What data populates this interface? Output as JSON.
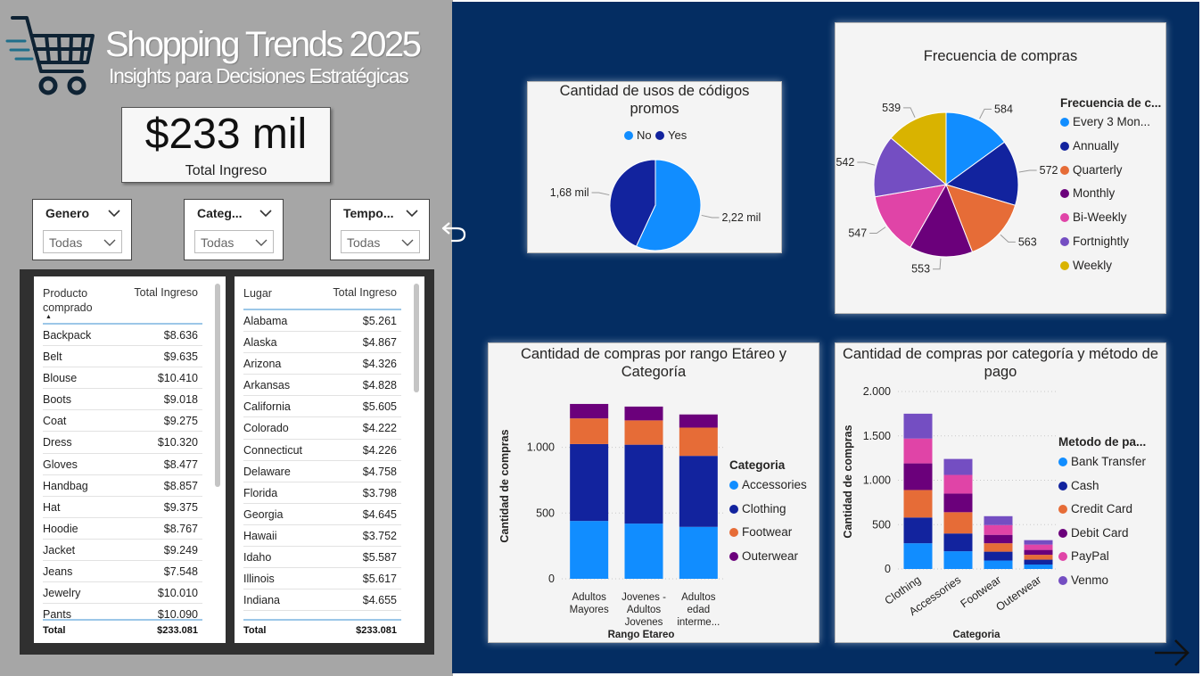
{
  "header": {
    "title": "Shopping Trends 2025",
    "subtitle": "Insights para Decisiones Estratégicas"
  },
  "kpi": {
    "value": "$233 mil",
    "label": "Total Ingreso"
  },
  "slicers": [
    {
      "title": "Genero",
      "value": "Todas"
    },
    {
      "title": "Categ...",
      "value": "Todas"
    },
    {
      "title": "Tempo...",
      "value": "Todas"
    }
  ],
  "product_table": {
    "header_left": "Producto comprado",
    "header_right": "Total Ingreso",
    "rows": [
      [
        "Backpack",
        "$8.636"
      ],
      [
        "Belt",
        "$9.635"
      ],
      [
        "Blouse",
        "$10.410"
      ],
      [
        "Boots",
        "$9.018"
      ],
      [
        "Coat",
        "$9.275"
      ],
      [
        "Dress",
        "$10.320"
      ],
      [
        "Gloves",
        "$8.477"
      ],
      [
        "Handbag",
        "$8.857"
      ],
      [
        "Hat",
        "$9.375"
      ],
      [
        "Hoodie",
        "$8.767"
      ],
      [
        "Jacket",
        "$9.249"
      ],
      [
        "Jeans",
        "$7.548"
      ],
      [
        "Jewelry",
        "$10.010"
      ],
      [
        "Pants",
        "$10.090"
      ]
    ],
    "total_label": "Total",
    "total_value": "$233.081"
  },
  "location_table": {
    "header_left": "Lugar",
    "header_right": "Total Ingreso",
    "rows": [
      [
        "Alabama",
        "$5.261"
      ],
      [
        "Alaska",
        "$4.867"
      ],
      [
        "Arizona",
        "$4.326"
      ],
      [
        "Arkansas",
        "$4.828"
      ],
      [
        "California",
        "$5.605"
      ],
      [
        "Colorado",
        "$4.222"
      ],
      [
        "Connecticut",
        "$4.226"
      ],
      [
        "Delaware",
        "$4.758"
      ],
      [
        "Florida",
        "$3.798"
      ],
      [
        "Georgia",
        "$4.645"
      ],
      [
        "Hawaii",
        "$3.752"
      ],
      [
        "Idaho",
        "$5.587"
      ],
      [
        "Illinois",
        "$5.617"
      ],
      [
        "Indiana",
        "$4.655"
      ]
    ],
    "total_label": "Total",
    "total_value": "$233.081"
  },
  "chart_data": [
    {
      "id": "promo",
      "type": "pie",
      "title": "Cantidad de usos de códigos promos",
      "legend": [
        "No",
        "Yes"
      ],
      "slices": [
        {
          "name": "No",
          "value": 2220,
          "label": "2,22 mil",
          "color": "#118dff"
        },
        {
          "name": "Yes",
          "value": 1680,
          "label": "1,68 mil",
          "color": "#12239e"
        }
      ]
    },
    {
      "id": "frequency",
      "type": "pie",
      "title": "Frecuencia de compras",
      "legend_title": "Frecuencia de c...",
      "slices": [
        {
          "name": "Every 3 Mon...",
          "value": 584,
          "label": "584",
          "color": "#118dff"
        },
        {
          "name": "Annually",
          "value": 572,
          "label": "572",
          "color": "#12239e"
        },
        {
          "name": "Quarterly",
          "value": 563,
          "label": "563",
          "color": "#e66c37"
        },
        {
          "name": "Monthly",
          "value": 553,
          "label": "553",
          "color": "#6b007b"
        },
        {
          "name": "Bi-Weekly",
          "value": 547,
          "label": "547",
          "color": "#e044a7"
        },
        {
          "name": "Fortnightly",
          "value": 542,
          "label": "542",
          "color": "#744ec2"
        },
        {
          "name": "Weekly",
          "value": 539,
          "label": "539",
          "color": "#d9b300"
        }
      ]
    },
    {
      "id": "age",
      "type": "bar",
      "stacked": true,
      "title": "Cantidad de compras por rango Etáreo y Categoría",
      "xlabel": "Rango Etareo",
      "ylabel": "Cantidad de compras",
      "ylim": [
        0,
        1350
      ],
      "yticks": [
        0,
        500,
        1000
      ],
      "ytick_labels": [
        "0",
        "500",
        "1.000"
      ],
      "categories": [
        [
          "Adultos",
          "Mayores"
        ],
        [
          "Jovenes -",
          "Adultos",
          "Jovenes"
        ],
        [
          "Adultos",
          "edad",
          "interme..."
        ]
      ],
      "legend_title": "Categoria",
      "series": [
        {
          "name": "Accessories",
          "color": "#118dff",
          "values": [
            440,
            420,
            395
          ]
        },
        {
          "name": "Clothing",
          "color": "#12239e",
          "values": [
            585,
            600,
            540
          ]
        },
        {
          "name": "Footwear",
          "color": "#e66c37",
          "values": [
            195,
            185,
            215
          ]
        },
        {
          "name": "Outerwear",
          "color": "#6b007b",
          "values": [
            110,
            105,
            100
          ]
        }
      ]
    },
    {
      "id": "payment",
      "type": "bar",
      "stacked": true,
      "title": "Cantidad de compras por categoría y método de pago",
      "xlabel": "Categoria",
      "ylabel": "Cantidad de compras",
      "ylim": [
        0,
        2000
      ],
      "yticks": [
        0,
        500,
        1000,
        1500,
        2000
      ],
      "ytick_labels": [
        "0",
        "500",
        "1.000",
        "1.500",
        "2.000"
      ],
      "categories": [
        "Clothing",
        "Accessories",
        "Footwear",
        "Outerwear"
      ],
      "legend_title": "Metodo de pa...",
      "series": [
        {
          "name": "Bank Transfer",
          "color": "#118dff",
          "values": [
            290,
            200,
            95,
            50
          ]
        },
        {
          "name": "Cash",
          "color": "#12239e",
          "values": [
            290,
            200,
            100,
            55
          ]
        },
        {
          "name": "Credit Card",
          "color": "#e66c37",
          "values": [
            310,
            240,
            95,
            55
          ]
        },
        {
          "name": "Debit Card",
          "color": "#6b007b",
          "values": [
            300,
            210,
            95,
            55
          ]
        },
        {
          "name": "PayPal",
          "color": "#e044a7",
          "values": [
            280,
            210,
            110,
            60
          ]
        },
        {
          "name": "Venmo",
          "color": "#744ec2",
          "values": [
            280,
            180,
            100,
            50
          ]
        }
      ]
    }
  ]
}
